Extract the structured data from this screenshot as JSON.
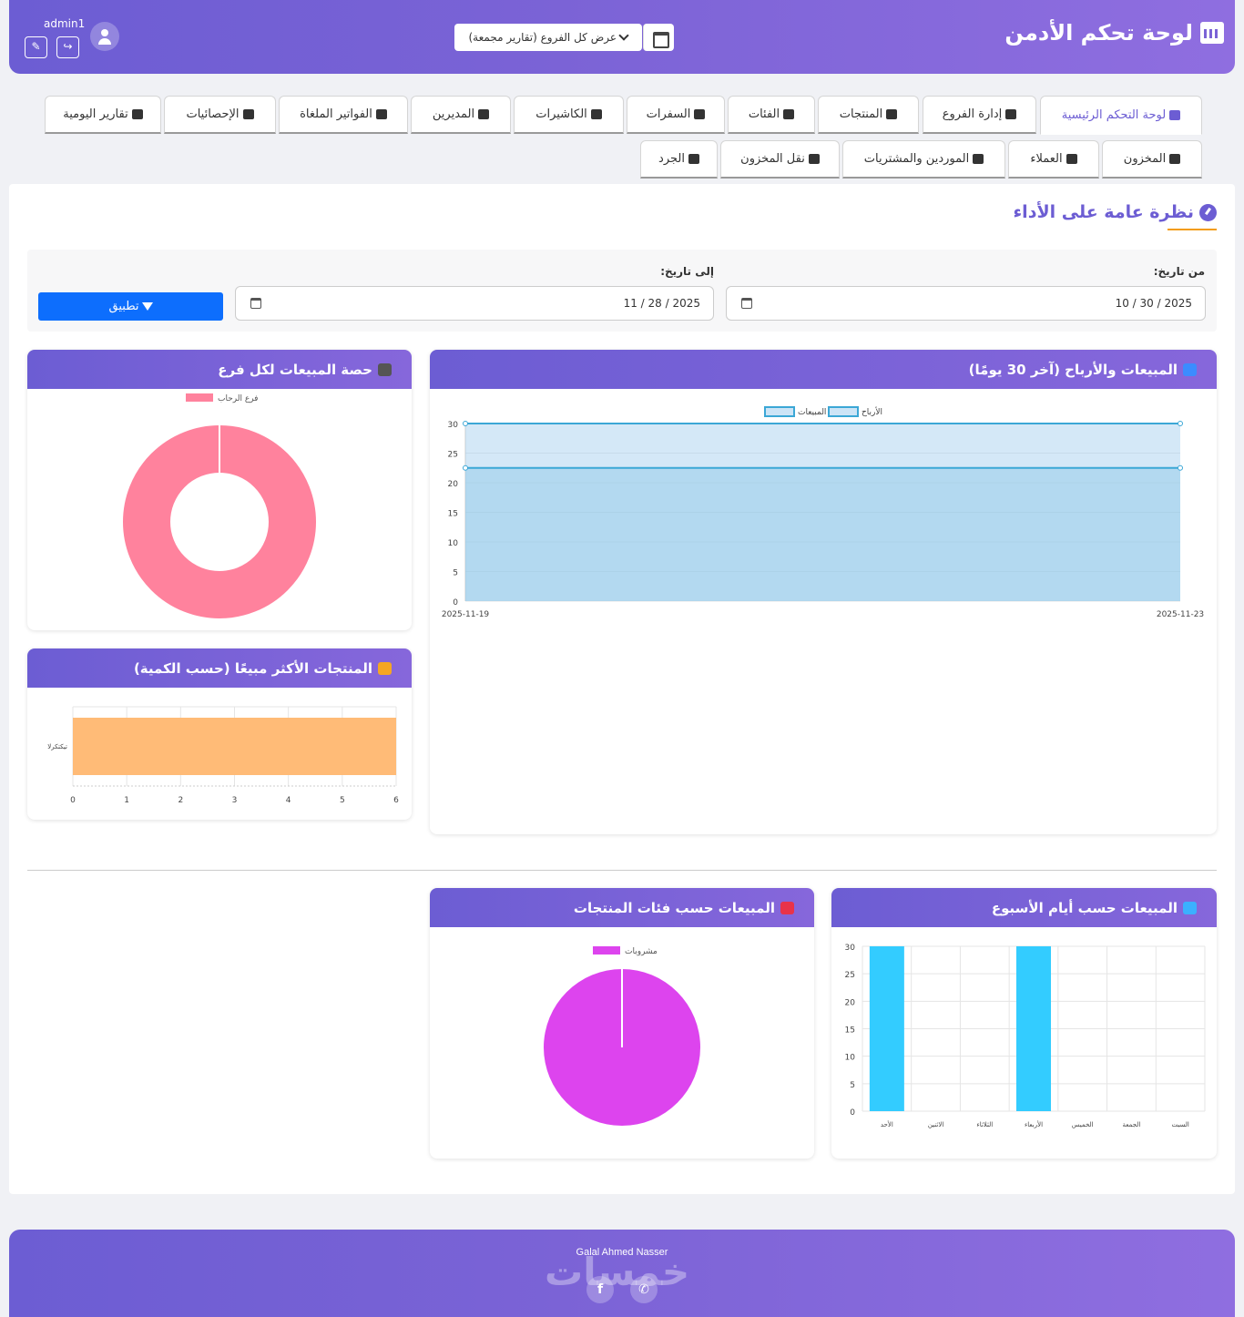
{
  "header": {
    "title": "لوحة تحكم الأدمن",
    "branch_select": "عرض كل الفروع (تقارير مجمعة)",
    "username": "admin1"
  },
  "nav": {
    "row1": [
      "لوحة التحكم الرئيسية",
      "إدارة الفروع",
      "المنتجات",
      "الفئات",
      "السفرات",
      "الكاشيرات",
      "المديرين",
      "الفواتير الملغاة",
      "الإحصائيات",
      "تقارير اليومية"
    ],
    "row2": [
      "المخزون",
      "العملاء",
      "الموردين والمشتريات",
      "نقل المخزون",
      "الجرد"
    ]
  },
  "overview": {
    "title": "نظرة عامة على الأداء",
    "from_label": "من تاريخ:",
    "to_label": "إلى تاريخ:",
    "from_value": "10 / 30 / 2025",
    "to_value": "11 / 28 / 2025",
    "apply": "تطبيق"
  },
  "cards": {
    "sales_profit": "المبيعات والأرباح (آخر 30 يومًا)",
    "branch_share": "حصة المبيعات لكل فرع",
    "top_products": "المنتجات الأكثر مبيعًا (حسب الكمية)",
    "weekday_sales": "المبيعات حسب أيام الأسبوع",
    "category_sales": "المبيعات حسب فئات المنتجات"
  },
  "colors": {
    "primary": "#6c5dd3",
    "accent": "#f39c12",
    "apply": "#0d6efd"
  },
  "chart_data": [
    {
      "type": "area",
      "x": [
        "2025-11-19",
        "2025-11-23"
      ],
      "series": [
        {
          "name": "المبيعات",
          "values": [
            22.5,
            22.5
          ]
        },
        {
          "name": "الأرباح",
          "values": [
            30,
            30
          ]
        }
      ],
      "ylim": [
        0,
        30
      ],
      "yticks": [
        0,
        5,
        10,
        15,
        20,
        25,
        30
      ],
      "legend": "top"
    },
    {
      "type": "pie",
      "variant": "doughnut",
      "labels": [
        "فرع الرحاب"
      ],
      "values": [
        100
      ],
      "colors": [
        "#ff829d"
      ],
      "legend": "top"
    },
    {
      "type": "bar",
      "orientation": "horizontal",
      "categories": [
        "تيكتكرلا"
      ],
      "values": [
        6
      ],
      "xlim": [
        0,
        6
      ],
      "xticks": [
        0,
        1,
        2,
        3,
        4,
        5,
        6
      ],
      "color": "#ffbb77"
    },
    {
      "type": "bar",
      "categories": [
        "الأحد",
        "الاثنين",
        "الثلاثاء",
        "الأربعاء",
        "الخميس",
        "الجمعة",
        "السبت"
      ],
      "values": [
        30,
        0,
        0,
        30,
        0,
        0,
        0
      ],
      "ylim": [
        0,
        30
      ],
      "yticks": [
        0,
        5,
        10,
        15,
        20,
        25,
        30
      ],
      "color": "#33ccff"
    },
    {
      "type": "pie",
      "labels": [
        "مشروبات"
      ],
      "values": [
        100
      ],
      "colors": [
        "#dd44ee"
      ],
      "legend": "top"
    }
  ],
  "footer": {
    "credit": "Galal Ahmed Nasser",
    "watermark": "خمسات",
    "social": [
      "facebook-icon",
      "whatsapp-icon"
    ]
  }
}
